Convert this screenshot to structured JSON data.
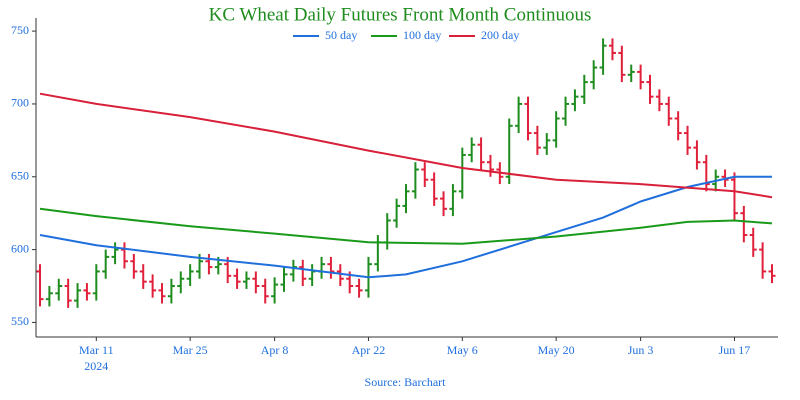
{
  "chart_data": {
    "type": "ohlc",
    "title": "KC Wheat Daily Futures Front Month Continuous",
    "source": "Source: Barchart",
    "x_year_label": "2024",
    "x": [
      "2024-03-01",
      "2024-03-04",
      "2024-03-05",
      "2024-03-06",
      "2024-03-07",
      "2024-03-08",
      "2024-03-11",
      "2024-03-12",
      "2024-03-13",
      "2024-03-14",
      "2024-03-15",
      "2024-03-18",
      "2024-03-19",
      "2024-03-20",
      "2024-03-21",
      "2024-03-22",
      "2024-03-25",
      "2024-03-26",
      "2024-03-27",
      "2024-03-28",
      "2024-04-01",
      "2024-04-02",
      "2024-04-03",
      "2024-04-04",
      "2024-04-05",
      "2024-04-08",
      "2024-04-09",
      "2024-04-10",
      "2024-04-11",
      "2024-04-12",
      "2024-04-15",
      "2024-04-16",
      "2024-04-17",
      "2024-04-18",
      "2024-04-19",
      "2024-04-22",
      "2024-04-23",
      "2024-04-24",
      "2024-04-25",
      "2024-04-26",
      "2024-04-29",
      "2024-04-30",
      "2024-05-01",
      "2024-05-02",
      "2024-05-03",
      "2024-05-06",
      "2024-05-07",
      "2024-05-08",
      "2024-05-09",
      "2024-05-10",
      "2024-05-13",
      "2024-05-14",
      "2024-05-15",
      "2024-05-16",
      "2024-05-17",
      "2024-05-20",
      "2024-05-21",
      "2024-05-22",
      "2024-05-23",
      "2024-05-24",
      "2024-05-28",
      "2024-05-29",
      "2024-05-30",
      "2024-05-31",
      "2024-06-03",
      "2024-06-04",
      "2024-06-05",
      "2024-06-06",
      "2024-06-07",
      "2024-06-10",
      "2024-06-11",
      "2024-06-12",
      "2024-06-13",
      "2024-06-14",
      "2024-06-17",
      "2024-06-18",
      "2024-06-20",
      "2024-06-21",
      "2024-06-24"
    ],
    "open": [
      585,
      566,
      570,
      575,
      565,
      572,
      570,
      585,
      595,
      600,
      592,
      585,
      578,
      572,
      568,
      575,
      580,
      585,
      592,
      588,
      590,
      582,
      578,
      580,
      575,
      568,
      576,
      583,
      588,
      580,
      585,
      590,
      585,
      580,
      575,
      572,
      590,
      605,
      620,
      630,
      640,
      655,
      648,
      635,
      628,
      640,
      665,
      672,
      660,
      655,
      650,
      685,
      700,
      680,
      670,
      675,
      690,
      700,
      705,
      715,
      725,
      740,
      735,
      720,
      722,
      715,
      705,
      700,
      690,
      680,
      670,
      660,
      645,
      650,
      648,
      625,
      610,
      600,
      585
    ],
    "high": [
      590,
      575,
      580,
      580,
      577,
      577,
      590,
      600,
      605,
      605,
      597,
      590,
      583,
      577,
      580,
      585,
      590,
      597,
      597,
      595,
      595,
      587,
      585,
      585,
      580,
      581,
      588,
      593,
      593,
      590,
      595,
      595,
      590,
      585,
      580,
      595,
      610,
      625,
      635,
      645,
      660,
      660,
      653,
      640,
      645,
      670,
      677,
      677,
      665,
      660,
      690,
      705,
      705,
      685,
      680,
      695,
      705,
      710,
      720,
      730,
      745,
      745,
      740,
      727,
      727,
      720,
      710,
      705,
      695,
      685,
      675,
      665,
      655,
      655,
      653,
      630,
      615,
      605,
      590
    ],
    "low": [
      561,
      561,
      565,
      560,
      560,
      565,
      565,
      580,
      590,
      587,
      580,
      573,
      567,
      563,
      563,
      570,
      575,
      580,
      583,
      583,
      577,
      573,
      573,
      570,
      563,
      563,
      571,
      578,
      575,
      575,
      580,
      580,
      575,
      570,
      567,
      567,
      585,
      600,
      615,
      625,
      635,
      643,
      630,
      623,
      623,
      635,
      660,
      655,
      650,
      645,
      645,
      680,
      675,
      665,
      665,
      670,
      685,
      695,
      700,
      710,
      720,
      730,
      715,
      715,
      710,
      700,
      695,
      685,
      675,
      665,
      655,
      640,
      640,
      643,
      620,
      605,
      595,
      580,
      577
    ],
    "close": [
      566,
      570,
      575,
      565,
      572,
      570,
      585,
      595,
      600,
      592,
      585,
      578,
      572,
      568,
      575,
      580,
      585,
      592,
      588,
      590,
      582,
      578,
      580,
      575,
      568,
      576,
      583,
      588,
      580,
      585,
      590,
      585,
      580,
      575,
      572,
      590,
      605,
      620,
      630,
      640,
      655,
      648,
      635,
      628,
      640,
      665,
      672,
      660,
      655,
      650,
      685,
      700,
      680,
      670,
      675,
      690,
      700,
      705,
      715,
      725,
      740,
      735,
      720,
      722,
      715,
      705,
      700,
      690,
      680,
      670,
      660,
      645,
      650,
      648,
      625,
      610,
      600,
      585,
      582
    ],
    "up_color": "#1e8c1e",
    "down_color": "#e0203a",
    "series": [
      {
        "name": "50 day",
        "color": "#1f6fdc",
        "x": [
          "2024-03-01",
          "2024-03-11",
          "2024-03-25",
          "2024-04-08",
          "2024-04-22",
          "2024-04-26",
          "2024-05-06",
          "2024-05-20",
          "2024-05-28",
          "2024-06-03",
          "2024-06-10",
          "2024-06-17",
          "2024-06-24"
        ],
        "values": [
          610,
          603,
          595,
          589,
          581,
          583,
          592,
          612,
          622,
          633,
          643,
          650,
          650
        ]
      },
      {
        "name": "100 day",
        "color": "#1a9a1a",
        "x": [
          "2024-03-01",
          "2024-03-11",
          "2024-03-25",
          "2024-04-08",
          "2024-04-22",
          "2024-05-06",
          "2024-05-20",
          "2024-06-03",
          "2024-06-10",
          "2024-06-17",
          "2024-06-24"
        ],
        "values": [
          628,
          623,
          616,
          611,
          605,
          604,
          609,
          615,
          619,
          620,
          618
        ]
      },
      {
        "name": "200 day",
        "color": "#d8203a",
        "x": [
          "2024-03-01",
          "2024-03-11",
          "2024-03-25",
          "2024-04-08",
          "2024-04-22",
          "2024-05-06",
          "2024-05-20",
          "2024-06-03",
          "2024-06-17",
          "2024-06-24"
        ],
        "values": [
          707,
          700,
          691,
          681,
          668,
          656,
          648,
          645,
          640,
          636
        ]
      }
    ],
    "ylim": [
      540,
      759
    ],
    "yticks": [
      550,
      600,
      650,
      700,
      750
    ],
    "xticks": [
      {
        "value": "2024-03-11",
        "label": "Mar 11"
      },
      {
        "value": "2024-03-25",
        "label": "Mar 25"
      },
      {
        "value": "2024-04-08",
        "label": "Apr 8"
      },
      {
        "value": "2024-04-22",
        "label": "Apr 22"
      },
      {
        "value": "2024-05-06",
        "label": "May 6"
      },
      {
        "value": "2024-05-20",
        "label": "May 20"
      },
      {
        "value": "2024-06-03",
        "label": "Jun 3"
      },
      {
        "value": "2024-06-17",
        "label": "Jun 17"
      }
    ]
  }
}
